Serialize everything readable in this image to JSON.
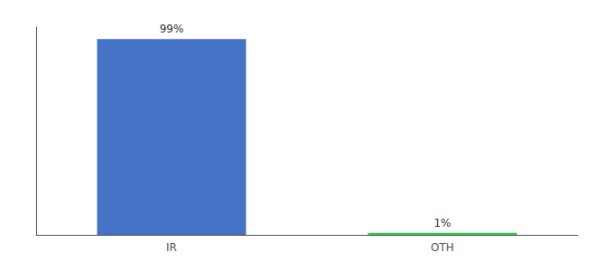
{
  "chart_data": {
    "type": "bar",
    "categories": [
      "IR",
      "OTH"
    ],
    "values": [
      99,
      1
    ],
    "colors": [
      "#4472c4",
      "#2ecc40"
    ],
    "ylim": [
      0,
      105
    ],
    "data_labels": true,
    "value_labels": [
      "99%",
      "1%"
    ],
    "tick_labels": "x",
    "grid": false
  }
}
